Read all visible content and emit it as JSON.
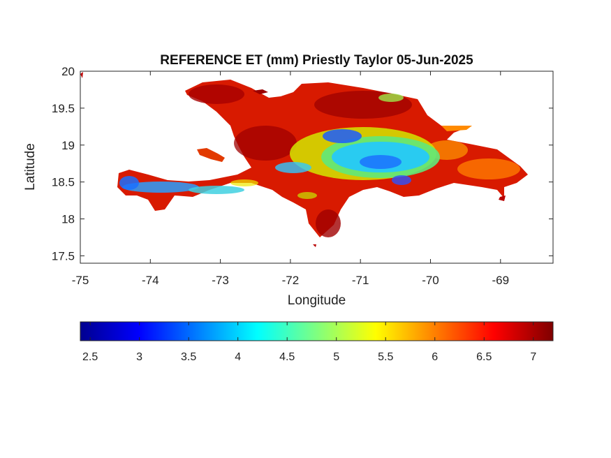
{
  "title": "REFERENCE ET (mm) Priestly Taylor 05-Jun-2025",
  "xlabel": "Longitude",
  "ylabel": "Latitude",
  "map": {
    "type": "heatmap",
    "region": "Hispaniola",
    "xlim": [
      -75,
      -68.25
    ],
    "ylim": [
      17.4,
      20
    ],
    "xticks": [
      "-75",
      "-74",
      "-73",
      "-72",
      "-71",
      "-70",
      "-69"
    ],
    "yticks": [
      "20",
      "19.5",
      "19",
      "18.5",
      "18",
      "17.5"
    ],
    "grid": false
  },
  "colorbar": {
    "colormap": "jet",
    "range": [
      2.4,
      7.2
    ],
    "ticks": [
      "2.5",
      "3",
      "3.5",
      "4",
      "4.5",
      "5",
      "5.5",
      "6",
      "6.5",
      "7"
    ],
    "orientation": "horizontal",
    "placement": "below"
  },
  "colors": {
    "background": "#ffffff",
    "axes": "#262626",
    "high": "#7f0000",
    "mid": "#ffff00",
    "low": "#00008f"
  }
}
